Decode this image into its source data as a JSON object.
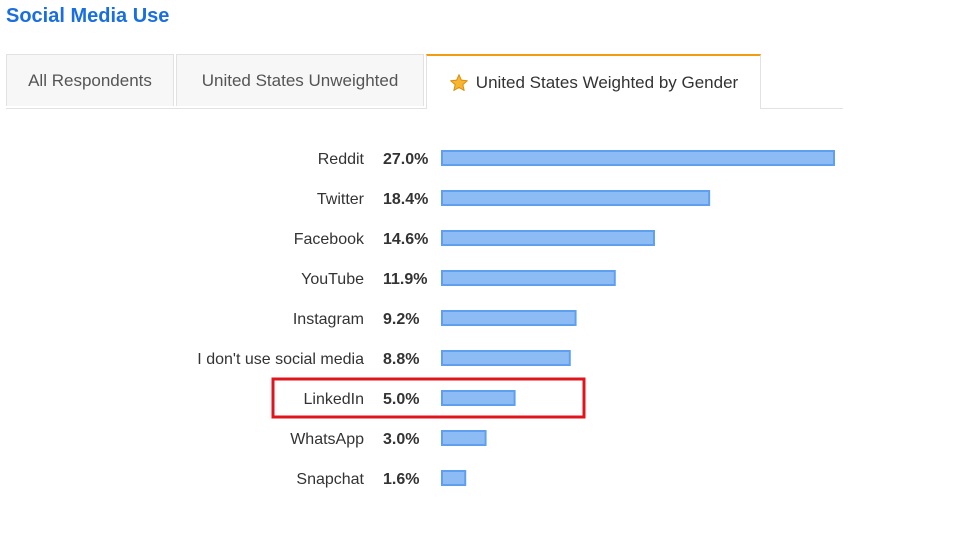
{
  "page": {
    "title": "Social Media Use"
  },
  "tabs": [
    {
      "label": "All Respondents",
      "active": false
    },
    {
      "label": "United States Unweighted",
      "active": false
    },
    {
      "label": "United States Weighted by Gender",
      "active": true,
      "icon": "star-icon"
    }
  ],
  "colors": {
    "title": "#1a6fe0",
    "tab_accent": "#f39c12",
    "bar_fill": "#8dbcf5",
    "bar_stroke": "#5ea0ef",
    "highlight": "#e0151c"
  },
  "chart_data": {
    "type": "bar",
    "orientation": "horizontal",
    "categories": [
      "Reddit",
      "Twitter",
      "Facebook",
      "YouTube",
      "Instagram",
      "I don't use social media",
      "LinkedIn",
      "WhatsApp",
      "Snapchat"
    ],
    "values": [
      27.0,
      18.4,
      14.6,
      11.9,
      9.2,
      8.8,
      5.0,
      3.0,
      1.6
    ],
    "value_labels": [
      "27.0%",
      "18.4%",
      "14.6%",
      "11.9%",
      "9.2%",
      "8.8%",
      "5.0%",
      "3.0%",
      "1.6%"
    ],
    "highlighted_category": "LinkedIn",
    "xlim": [
      0,
      27.0
    ],
    "grid": false,
    "legend": "none"
  }
}
